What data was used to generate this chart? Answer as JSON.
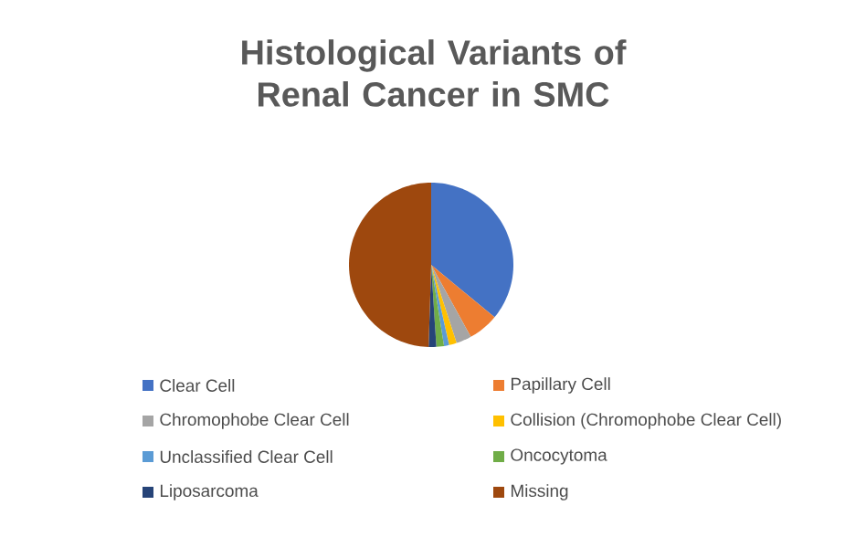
{
  "chart_data": {
    "type": "pie",
    "title": "Histological Variants of Renal Cancer in SMC",
    "categories": [
      "Clear Cell",
      "Papillary Cell",
      "Chromophobe Clear Cell",
      "Collision (Chromophobe Clear Cell)",
      "Unclassified Clear Cell",
      "Oncocytoma",
      "Liposarcoma",
      "Missing"
    ],
    "values": [
      36,
      6,
      3,
      1.5,
      1,
      1.5,
      1.5,
      49.5
    ],
    "colors": [
      "#4472c4",
      "#ed7d31",
      "#a5a5a5",
      "#ffc000",
      "#5b9bd5",
      "#70ad47",
      "#264478",
      "#9e480e"
    ],
    "legend": "bottom"
  }
}
